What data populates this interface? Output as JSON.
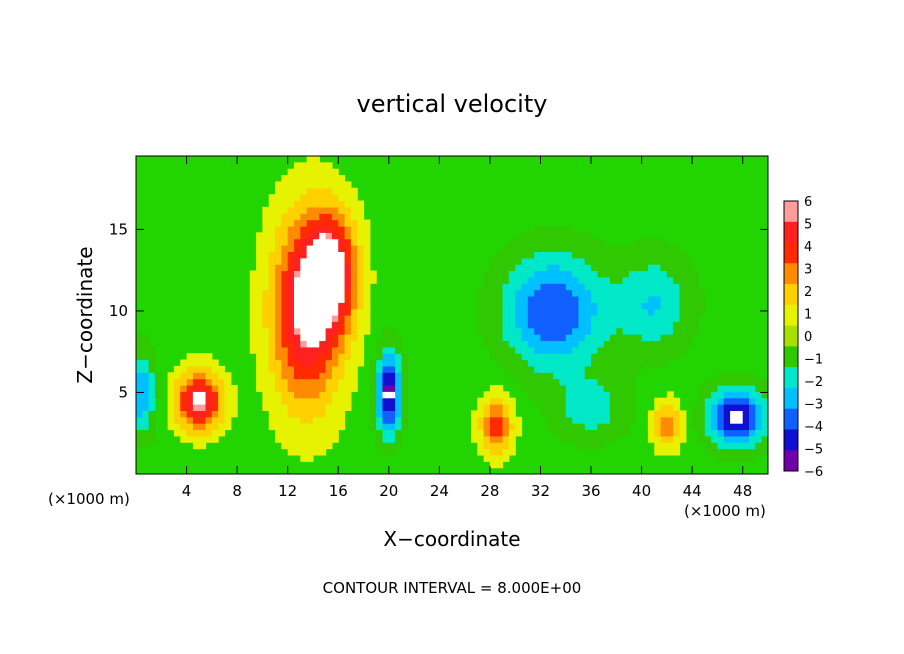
{
  "chart_data": {
    "type": "heatmap",
    "title": "vertical velocity",
    "xlabel": "X−coordinate",
    "ylabel": "Z−coordinate",
    "x_unit_label": "(×1000 m)",
    "y_unit_label": "(×1000 m)",
    "footer": "CONTOUR INTERVAL = 8.000E+00",
    "xlim": [
      0,
      50
    ],
    "ylim": [
      0,
      19.5
    ],
    "x_ticks": [
      4,
      8,
      12,
      16,
      20,
      24,
      28,
      32,
      36,
      40,
      44,
      48
    ],
    "y_ticks": [
      5,
      10,
      15
    ],
    "x_tick_labels": [
      "4",
      "8",
      "12",
      "16",
      "20",
      "24",
      "28",
      "32",
      "36",
      "40",
      "44",
      "48"
    ],
    "y_tick_labels": [
      "5",
      "10",
      "15"
    ],
    "colorbar": {
      "levels": [
        6,
        5,
        4,
        3,
        2,
        1,
        0,
        -1,
        -2,
        -3,
        -4,
        -5,
        -6
      ],
      "labels": [
        "6",
        "5",
        "4",
        "3",
        "2",
        "1",
        "0",
        "−1",
        "−2",
        "−3",
        "−4",
        "−5",
        "−6"
      ],
      "colors": [
        "#ff9c9c",
        "#ff2020",
        "#ff2a00",
        "#ff8c00",
        "#ffd000",
        "#e6f200",
        "#a8e000",
        "#30c800",
        "#00e8c8",
        "#00c0ff",
        "#1060ff",
        "#1010d0",
        "#7000a8"
      ]
    },
    "background_color": "#22d400",
    "features": [
      {
        "kind": "updraft",
        "x": 13.5,
        "z": 10.0,
        "peak": 6.0,
        "sx": 2.8,
        "sz": 5.8
      },
      {
        "kind": "updraft",
        "x": 15.5,
        "z": 12.5,
        "peak": 5.0,
        "sx": 2.0,
        "sz": 3.5
      },
      {
        "kind": "updraft",
        "x": 5.0,
        "z": 4.5,
        "peak": 6.0,
        "sx": 1.8,
        "sz": 1.8
      },
      {
        "kind": "updraft",
        "x": 28.5,
        "z": 3.0,
        "peak": 4.0,
        "sx": 1.3,
        "sz": 1.8
      },
      {
        "kind": "updraft",
        "x": 42.0,
        "z": 3.0,
        "peak": 3.0,
        "sx": 1.2,
        "sz": 1.5
      },
      {
        "kind": "downdraft",
        "x": 20.0,
        "z": 5.0,
        "peak": -6.0,
        "sx": 1.0,
        "sz": 2.5
      },
      {
        "kind": "downdraft",
        "x": 33.0,
        "z": 10.0,
        "peak": -4.5,
        "sx": 4.0,
        "sz": 3.5
      },
      {
        "kind": "downdraft",
        "x": 41.0,
        "z": 10.5,
        "peak": -2.5,
        "sx": 3.0,
        "sz": 3.0
      },
      {
        "kind": "downdraft",
        "x": 47.5,
        "z": 3.5,
        "peak": -6.0,
        "sx": 2.2,
        "sz": 1.8
      },
      {
        "kind": "downdraft",
        "x": 0.5,
        "z": 5.0,
        "peak": -3.5,
        "sx": 1.0,
        "sz": 2.5
      },
      {
        "kind": "downdraft",
        "x": 36.0,
        "z": 4.0,
        "peak": -2.0,
        "sx": 3.0,
        "sz": 2.0
      }
    ]
  }
}
